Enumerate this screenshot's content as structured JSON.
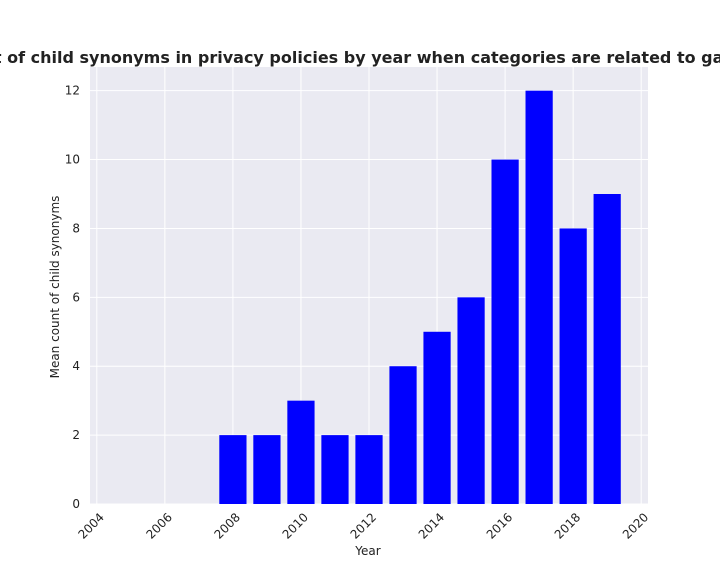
{
  "chart_data": {
    "type": "bar",
    "title": "Mean count of child synonyms in privacy policies by year when categories are related to games;sports",
    "xlabel": "Year",
    "ylabel": "Mean count of child synonyms",
    "x": [
      2008,
      2009,
      2010,
      2011,
      2012,
      2013,
      2014,
      2015,
      2016,
      2017,
      2018,
      2019
    ],
    "values": [
      2,
      2,
      3,
      2,
      2,
      4,
      5,
      6,
      10,
      12,
      8,
      9
    ],
    "xlim": [
      2003.8,
      2020.2
    ],
    "ylim": [
      0,
      12.6
    ],
    "xticks": [
      "2004",
      "2006",
      "2008",
      "2010",
      "2012",
      "2014",
      "2016",
      "2018",
      "2020"
    ],
    "yticks": [
      "0",
      "2",
      "4",
      "6",
      "8",
      "10",
      "12"
    ],
    "bar_color": "#0000ff",
    "plot_background": "#eaeaf2",
    "grid": true
  }
}
